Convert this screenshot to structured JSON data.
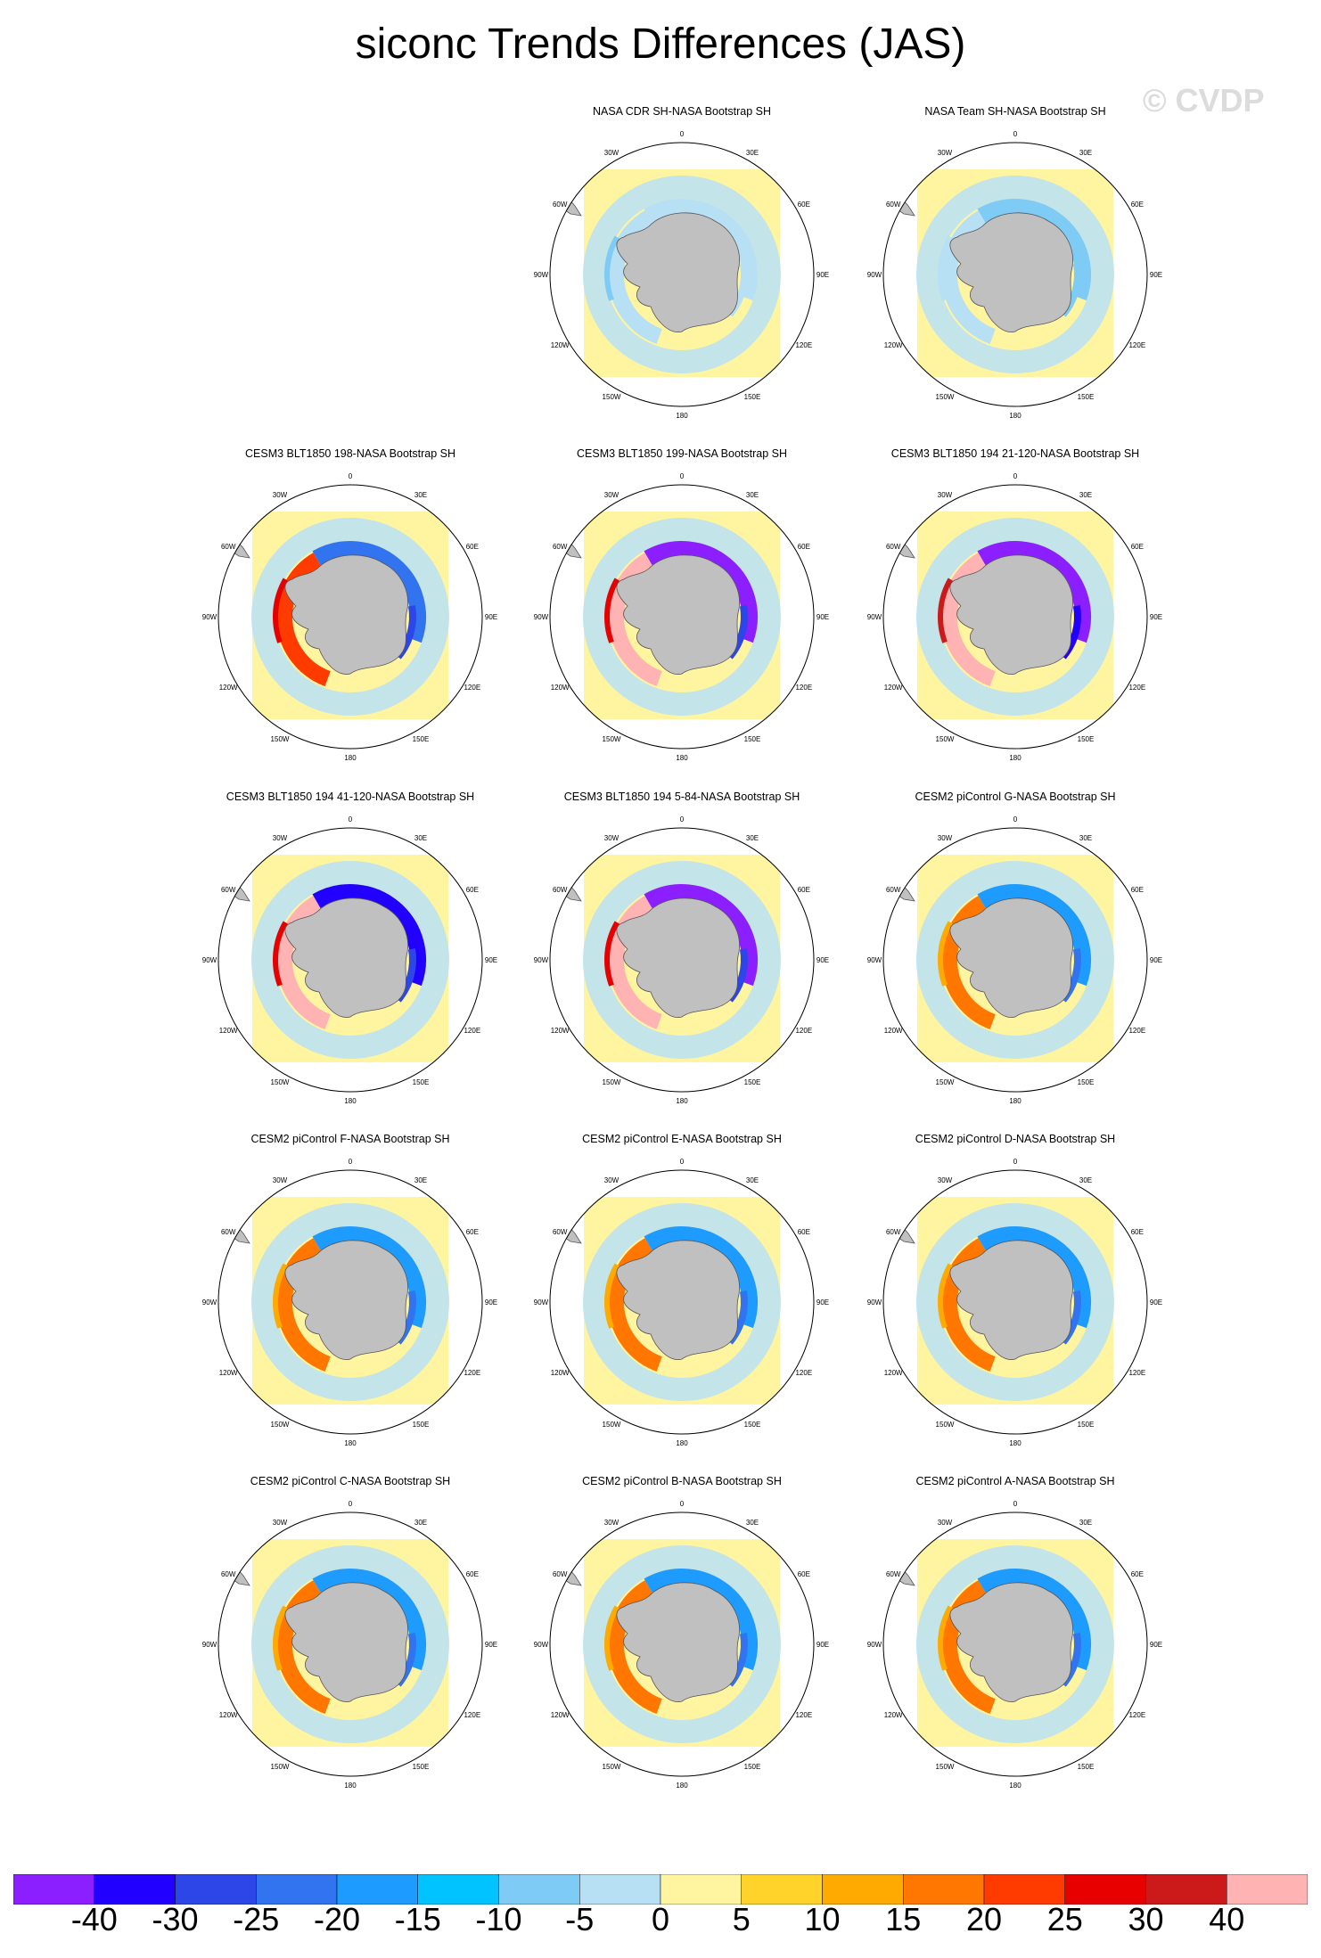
{
  "title": "siconc Trends Differences (JAS)",
  "watermark": "© CVDP",
  "lon_labels": [
    "0",
    "30E",
    "60E",
    "90E",
    "120E",
    "150E",
    "180",
    "150W",
    "120W",
    "90W",
    "60W",
    "30W"
  ],
  "panels": [
    {
      "title": "NASA CDR SH-NASA Bootstrap SH",
      "pattern": "light"
    },
    {
      "title": "NASA Team SH-NASA Bootstrap SH",
      "pattern": "light2"
    },
    {
      "title": "CESM3 BLT1850 198-NASA Bootstrap SH",
      "pattern": "ring-red-blue"
    },
    {
      "title": "CESM3 BLT1850 199-NASA Bootstrap SH",
      "pattern": "ring-pink-purple"
    },
    {
      "title": "CESM3 BLT1850 194 21-120-NASA Bootstrap SH",
      "pattern": "ring-red-purple"
    },
    {
      "title": "CESM3 BLT1850 194 41-120-NASA Bootstrap SH",
      "pattern": "ring-pink-blue"
    },
    {
      "title": "CESM3 BLT1850 194 5-84-NASA Bootstrap SH",
      "pattern": "ring-pink-purple"
    },
    {
      "title": "CESM2 piControl G-NASA Bootstrap SH",
      "pattern": "ring-orange-blue"
    },
    {
      "title": "CESM2 piControl F-NASA Bootstrap SH",
      "pattern": "ring-orange-blue"
    },
    {
      "title": "CESM2 piControl E-NASA Bootstrap SH",
      "pattern": "ring-orange-blue"
    },
    {
      "title": "CESM2 piControl D-NASA Bootstrap SH",
      "pattern": "ring-orange-blue"
    },
    {
      "title": "CESM2 piControl C-NASA Bootstrap SH",
      "pattern": "ring-orange-blue"
    },
    {
      "title": "CESM2 piControl B-NASA Bootstrap SH",
      "pattern": "ring-orange-blue"
    },
    {
      "title": "CESM2 piControl A-NASA Bootstrap SH",
      "pattern": "ring-orange-blue"
    }
  ],
  "colorbar": {
    "colors": [
      "#8b1fff",
      "#2100ff",
      "#2d46e8",
      "#3273ef",
      "#1e9bff",
      "#00c3ff",
      "#7ecbf5",
      "#b8e0f4",
      "#fff5a0",
      "#ffd32a",
      "#ffaa00",
      "#ff7700",
      "#ff3b00",
      "#e60000",
      "#cc1a1a",
      "#ffb3b3"
    ],
    "labels": [
      "-40",
      "-30",
      "-25",
      "-20",
      "-15",
      "-10",
      "-5",
      "0",
      "5",
      "10",
      "15",
      "20",
      "25",
      "30",
      "40"
    ]
  }
}
